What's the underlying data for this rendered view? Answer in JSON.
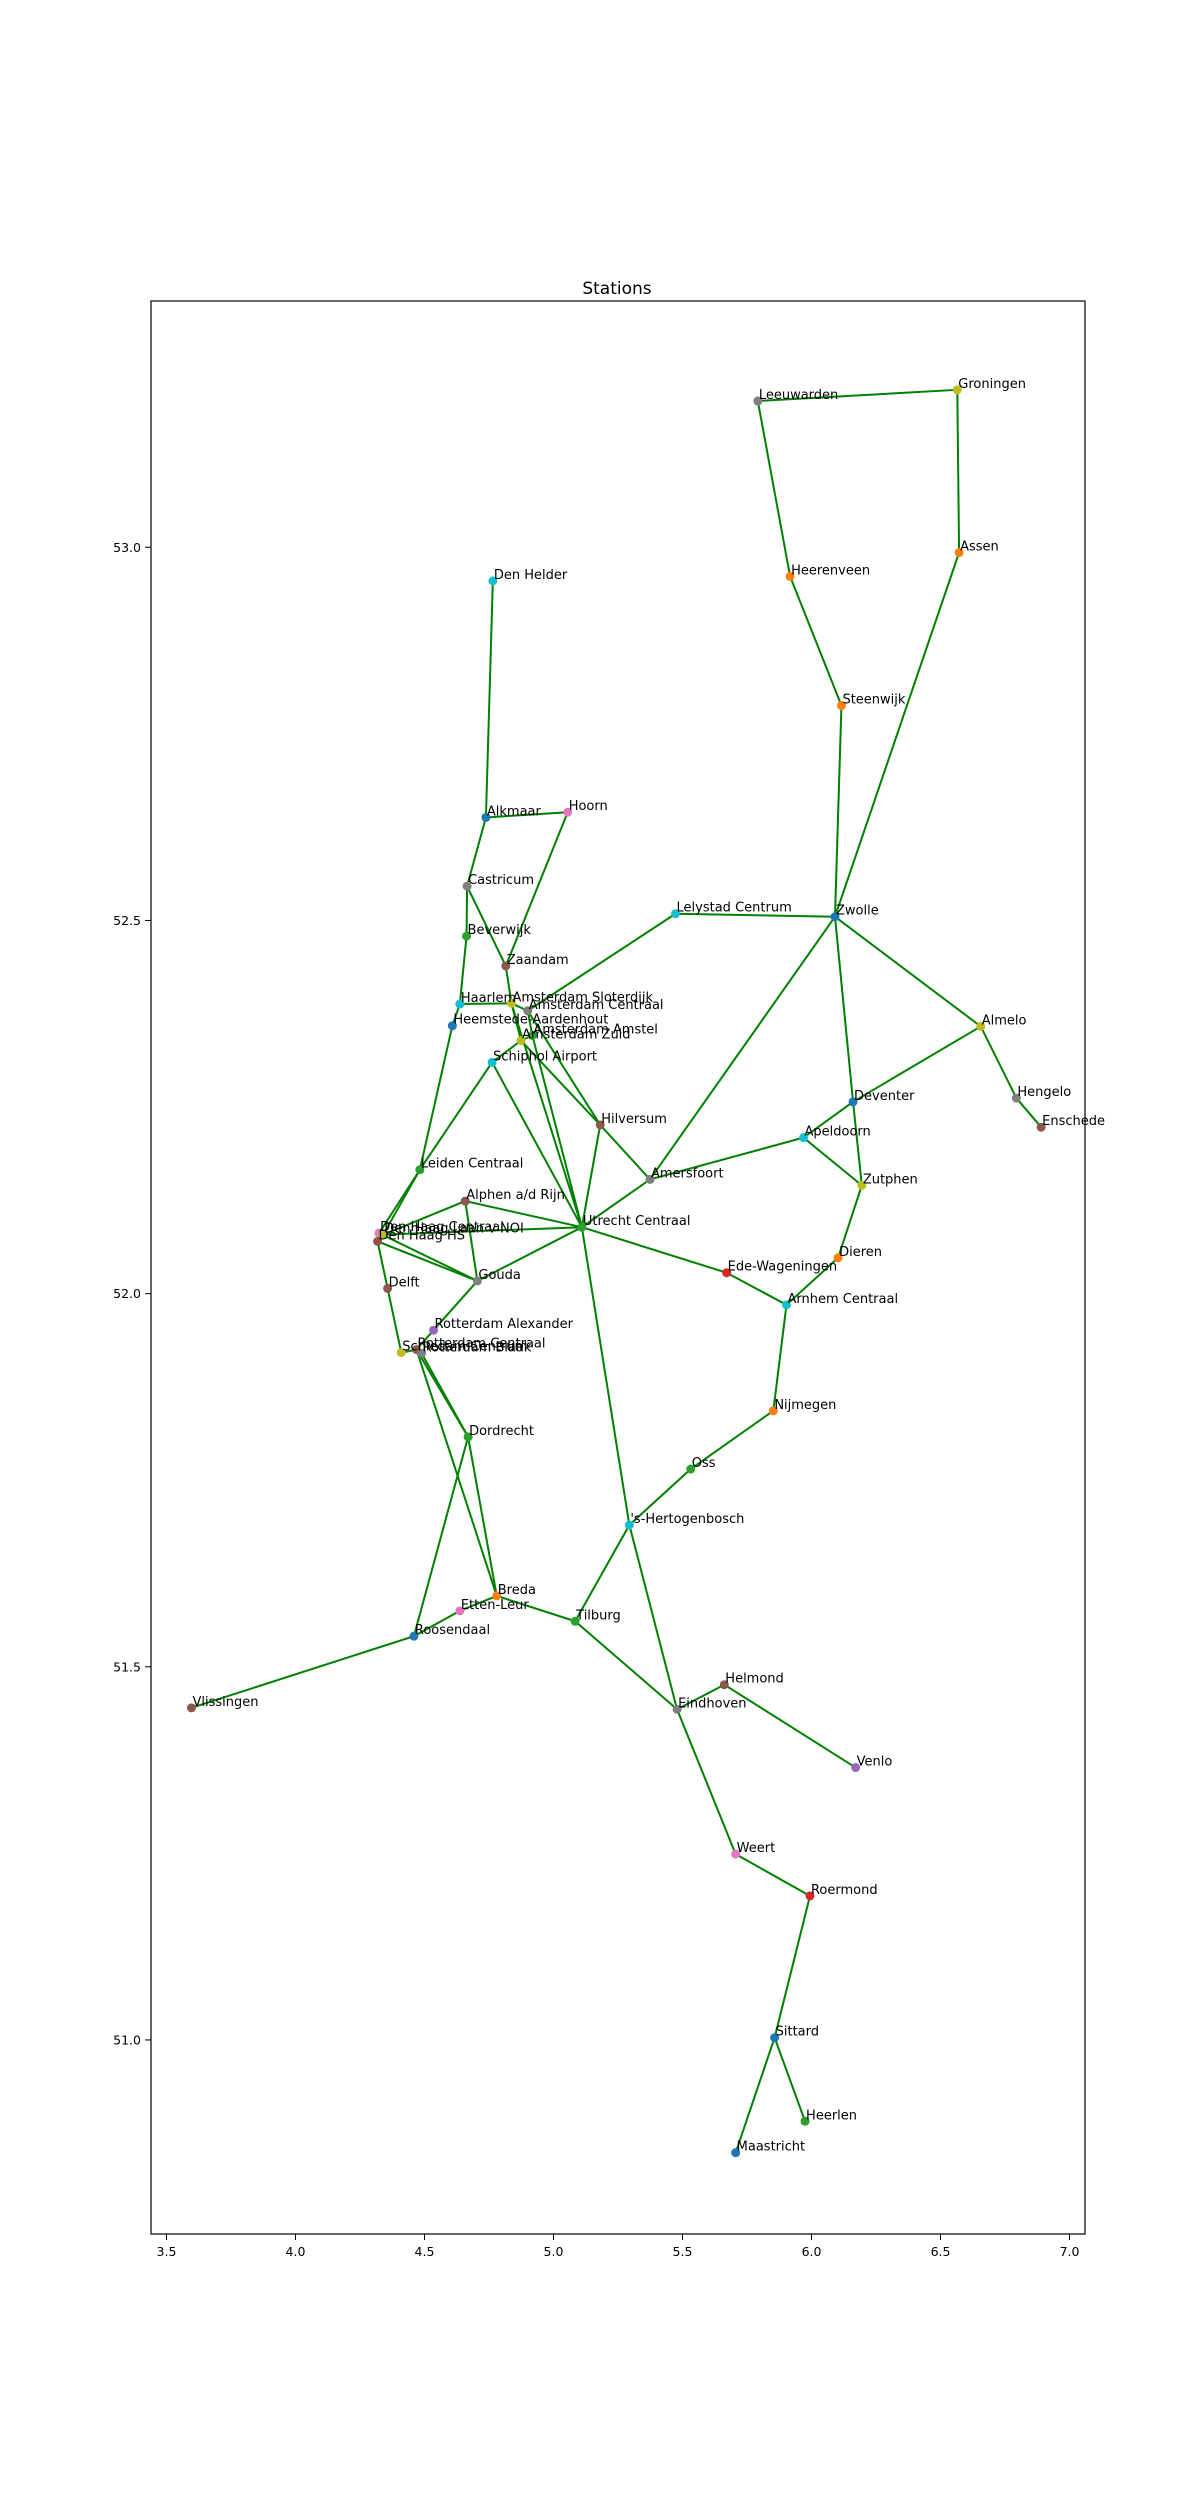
{
  "chart_data": {
    "type": "scatter",
    "title": "Stations",
    "xlabel": "",
    "ylabel": "",
    "xlim": [
      3.44,
      7.06
    ],
    "ylim": [
      50.74,
      53.33
    ],
    "xticks": [
      3.5,
      4.0,
      4.5,
      5.0,
      5.5,
      6.0,
      6.5,
      7.0
    ],
    "xtick_labels": [
      "3.5",
      "4.0",
      "4.5",
      "5.0",
      "5.5",
      "6.0",
      "6.5",
      "7.0"
    ],
    "yticks": [
      51.0,
      51.5,
      52.0,
      52.5,
      53.0
    ],
    "ytick_labels": [
      "51.0",
      "51.5",
      "52.0",
      "52.5",
      "53.0"
    ],
    "grid": false,
    "edge_color": "#008000",
    "points": [
      {
        "name": "Groningen",
        "x": 6.565,
        "y": 53.211,
        "color": "#bcbd22"
      },
      {
        "name": "Leeuwarden",
        "x": 5.792,
        "y": 53.196,
        "color": "#7f7f7f"
      },
      {
        "name": "Assen",
        "x": 6.572,
        "y": 52.993,
        "color": "#ff7f0e"
      },
      {
        "name": "Heerenveen",
        "x": 5.917,
        "y": 52.961,
        "color": "#ff7f0e"
      },
      {
        "name": "Den Helder",
        "x": 4.765,
        "y": 52.955,
        "color": "#17becf"
      },
      {
        "name": "Steenwijk",
        "x": 6.116,
        "y": 52.788,
        "color": "#ff7f0e"
      },
      {
        "name": "Hoorn",
        "x": 5.055,
        "y": 52.645,
        "color": "#e377c2"
      },
      {
        "name": "Alkmaar",
        "x": 4.738,
        "y": 52.638,
        "color": "#1f77b4"
      },
      {
        "name": "Castricum",
        "x": 4.665,
        "y": 52.546,
        "color": "#7f7f7f"
      },
      {
        "name": "Lelystad Centrum",
        "x": 5.473,
        "y": 52.509,
        "color": "#17becf"
      },
      {
        "name": "Zwolle",
        "x": 6.091,
        "y": 52.505,
        "color": "#1f77b4"
      },
      {
        "name": "Beverwijk",
        "x": 4.663,
        "y": 52.479,
        "color": "#2ca02c"
      },
      {
        "name": "Zaandam",
        "x": 4.815,
        "y": 52.439,
        "color": "#8c564b"
      },
      {
        "name": "Haarlem",
        "x": 4.637,
        "y": 52.388,
        "color": "#17becf"
      },
      {
        "name": "Amsterdam Sloterdijk",
        "x": 4.837,
        "y": 52.389,
        "color": "#bcbd22"
      },
      {
        "name": "Amsterdam Centraal",
        "x": 4.9,
        "y": 52.379,
        "color": "#7f7f7f"
      },
      {
        "name": "Almelo",
        "x": 6.656,
        "y": 52.358,
        "color": "#bcbd22"
      },
      {
        "name": "Heemstede-Aardenhout",
        "x": 4.608,
        "y": 52.359,
        "color": "#1f77b4"
      },
      {
        "name": "Amsterdam Amstel",
        "x": 4.918,
        "y": 52.346,
        "color": "#2ca02c"
      },
      {
        "name": "Amsterdam Zuid",
        "x": 4.874,
        "y": 52.339,
        "color": "#bcbd22"
      },
      {
        "name": "Schiphol Airport",
        "x": 4.762,
        "y": 52.31,
        "color": "#17becf"
      },
      {
        "name": "Hengelo",
        "x": 6.794,
        "y": 52.262,
        "color": "#7f7f7f"
      },
      {
        "name": "Deventer",
        "x": 6.161,
        "y": 52.257,
        "color": "#1f77b4"
      },
      {
        "name": "Enschede",
        "x": 6.89,
        "y": 52.223,
        "color": "#8c564b"
      },
      {
        "name": "Hilversum",
        "x": 5.181,
        "y": 52.226,
        "color": "#8c564b"
      },
      {
        "name": "Apeldoorn",
        "x": 5.969,
        "y": 52.209,
        "color": "#17becf"
      },
      {
        "name": "Leiden Centraal",
        "x": 4.482,
        "y": 52.166,
        "color": "#2ca02c"
      },
      {
        "name": "Amersfoort",
        "x": 5.374,
        "y": 52.153,
        "color": "#7f7f7f"
      },
      {
        "name": "Zutphen",
        "x": 6.195,
        "y": 52.145,
        "color": "#bcbd22"
      },
      {
        "name": "Alphen a/d Rijn",
        "x": 4.658,
        "y": 52.124,
        "color": "#8c564b"
      },
      {
        "name": "Utrecht Centraal",
        "x": 5.11,
        "y": 52.089,
        "color": "#2ca02c"
      },
      {
        "name": "Den Haag Centraal",
        "x": 4.324,
        "y": 52.081,
        "color": "#e377c2"
      },
      {
        "name": "Den Haag Laan v NOI",
        "x": 4.34,
        "y": 52.079,
        "color": "#bcbd22"
      },
      {
        "name": "Den Haag HS",
        "x": 4.318,
        "y": 52.07,
        "color": "#8c564b"
      },
      {
        "name": "Dieren",
        "x": 6.103,
        "y": 52.048,
        "color": "#ff7f0e"
      },
      {
        "name": "Ede-Wageningen",
        "x": 5.671,
        "y": 52.028,
        "color": "#d62728"
      },
      {
        "name": "Gouda",
        "x": 4.705,
        "y": 52.017,
        "color": "#7f7f7f"
      },
      {
        "name": "Delft",
        "x": 4.357,
        "y": 52.007,
        "color": "#8c564b"
      },
      {
        "name": "Arnhem Centraal",
        "x": 5.903,
        "y": 51.985,
        "color": "#17becf"
      },
      {
        "name": "Rotterdam Alexander",
        "x": 4.535,
        "y": 51.951,
        "color": "#9467bd"
      },
      {
        "name": "Rotterdam Centraal",
        "x": 4.469,
        "y": 51.925,
        "color": "#8c564b"
      },
      {
        "name": "Schiedam Centrum",
        "x": 4.41,
        "y": 51.921,
        "color": "#bcbd22"
      },
      {
        "name": "Rotterdam Blaak",
        "x": 4.489,
        "y": 51.92,
        "color": "#7f7f7f"
      },
      {
        "name": "Nijmegen",
        "x": 5.852,
        "y": 51.843,
        "color": "#ff7f0e"
      },
      {
        "name": "Dordrecht",
        "x": 4.669,
        "y": 51.808,
        "color": "#2ca02c"
      },
      {
        "name": "Oss",
        "x": 5.532,
        "y": 51.765,
        "color": "#2ca02c"
      },
      {
        "name": "'s-Hertogenbosch",
        "x": 5.294,
        "y": 51.69,
        "color": "#17becf"
      },
      {
        "name": "Breda",
        "x": 4.78,
        "y": 51.595,
        "color": "#ff7f0e"
      },
      {
        "name": "Etten-Leur",
        "x": 4.637,
        "y": 51.575,
        "color": "#e377c2"
      },
      {
        "name": "Tilburg",
        "x": 5.084,
        "y": 51.561,
        "color": "#2ca02c"
      },
      {
        "name": "Roosendaal",
        "x": 4.459,
        "y": 51.541,
        "color": "#1f77b4"
      },
      {
        "name": "Helmond",
        "x": 5.662,
        "y": 51.476,
        "color": "#8c564b"
      },
      {
        "name": "Vlissingen",
        "x": 3.597,
        "y": 51.445,
        "color": "#8c564b"
      },
      {
        "name": "Eindhoven",
        "x": 5.479,
        "y": 51.443,
        "color": "#7f7f7f"
      },
      {
        "name": "Venlo",
        "x": 6.171,
        "y": 51.365,
        "color": "#9467bd"
      },
      {
        "name": "Weert",
        "x": 5.706,
        "y": 51.249,
        "color": "#e377c2"
      },
      {
        "name": "Roermond",
        "x": 5.994,
        "y": 51.193,
        "color": "#d62728"
      },
      {
        "name": "Sittard",
        "x": 5.857,
        "y": 51.003,
        "color": "#1f77b4"
      },
      {
        "name": "Heerlen",
        "x": 5.975,
        "y": 50.891,
        "color": "#2ca02c"
      },
      {
        "name": "Maastricht",
        "x": 5.706,
        "y": 50.849,
        "color": "#1f77b4"
      }
    ],
    "edges": [
      [
        "Groningen",
        "Leeuwarden"
      ],
      [
        "Groningen",
        "Assen"
      ],
      [
        "Assen",
        "Zwolle"
      ],
      [
        "Leeuwarden",
        "Heerenveen"
      ],
      [
        "Heerenveen",
        "Steenwijk"
      ],
      [
        "Steenwijk",
        "Zwolle"
      ],
      [
        "Zwolle",
        "Lelystad Centrum"
      ],
      [
        "Zwolle",
        "Almelo"
      ],
      [
        "Zwolle",
        "Deventer"
      ],
      [
        "Zwolle",
        "Amersfoort"
      ],
      [
        "Almelo",
        "Hengelo"
      ],
      [
        "Hengelo",
        "Enschede"
      ],
      [
        "Almelo",
        "Deventer"
      ],
      [
        "Deventer",
        "Apeldoorn"
      ],
      [
        "Deventer",
        "Zutphen"
      ],
      [
        "Apeldoorn",
        "Amersfoort"
      ],
      [
        "Apeldoorn",
        "Zutphen"
      ],
      [
        "Zutphen",
        "Dieren"
      ],
      [
        "Dieren",
        "Arnhem Centraal"
      ],
      [
        "Lelystad Centrum",
        "Amsterdam Centraal"
      ],
      [
        "Den Helder",
        "Alkmaar"
      ],
      [
        "Alkmaar",
        "Hoorn"
      ],
      [
        "Alkmaar",
        "Castricum"
      ],
      [
        "Hoorn",
        "Zaandam"
      ],
      [
        "Castricum",
        "Beverwijk"
      ],
      [
        "Castricum",
        "Zaandam"
      ],
      [
        "Beverwijk",
        "Haarlem"
      ],
      [
        "Zaandam",
        "Amsterdam Sloterdijk"
      ],
      [
        "Haarlem",
        "Amsterdam Sloterdijk"
      ],
      [
        "Haarlem",
        "Heemstede-Aardenhout"
      ],
      [
        "Amsterdam Sloterdijk",
        "Amsterdam Centraal"
      ],
      [
        "Amsterdam Sloterdijk",
        "Amsterdam Zuid"
      ],
      [
        "Amsterdam Sloterdijk",
        "Utrecht Centraal"
      ],
      [
        "Amsterdam Centraal",
        "Amsterdam Amstel"
      ],
      [
        "Amsterdam Centraal",
        "Hilversum"
      ],
      [
        "Amsterdam Zuid",
        "Amsterdam Amstel"
      ],
      [
        "Amsterdam Zuid",
        "Schiphol Airport"
      ],
      [
        "Amsterdam Amstel",
        "Utrecht Centraal"
      ],
      [
        "Amsterdam Zuid",
        "Hilversum"
      ],
      [
        "Heemstede-Aardenhout",
        "Leiden Centraal"
      ],
      [
        "Schiphol Airport",
        "Leiden Centraal"
      ],
      [
        "Schiphol Airport",
        "Utrecht Centraal"
      ],
      [
        "Hilversum",
        "Utrecht Centraal"
      ],
      [
        "Hilversum",
        "Amersfoort"
      ],
      [
        "Amersfoort",
        "Utrecht Centraal"
      ],
      [
        "Leiden Centraal",
        "Den Haag Centraal"
      ],
      [
        "Leiden Centraal",
        "Den Haag Laan v NOI"
      ],
      [
        "Alphen a/d Rijn",
        "Utrecht Centraal"
      ],
      [
        "Alphen a/d Rijn",
        "Gouda"
      ],
      [
        "Alphen a/d Rijn",
        "Den Haag Laan v NOI"
      ],
      [
        "Den Haag Centraal",
        "Gouda"
      ],
      [
        "Den Haag Laan v NOI",
        "Utrecht Centraal"
      ],
      [
        "Den Haag HS",
        "Delft"
      ],
      [
        "Den Haag HS",
        "Gouda"
      ],
      [
        "Den Haag Centraal",
        "Den Haag HS"
      ],
      [
        "Delft",
        "Schiedam Centrum"
      ],
      [
        "Gouda",
        "Utrecht Centraal"
      ],
      [
        "Gouda",
        "Rotterdam Alexander"
      ],
      [
        "Rotterdam Alexander",
        "Rotterdam Centraal"
      ],
      [
        "Schiedam Centrum",
        "Rotterdam Centraal"
      ],
      [
        "Rotterdam Centraal",
        "Rotterdam Blaak"
      ],
      [
        "Rotterdam Centraal",
        "Dordrecht"
      ],
      [
        "Rotterdam Blaak",
        "Dordrecht"
      ],
      [
        "Rotterdam Centraal",
        "Breda"
      ],
      [
        "Dordrecht",
        "Breda"
      ],
      [
        "Dordrecht",
        "Roosendaal"
      ],
      [
        "Breda",
        "Etten-Leur"
      ],
      [
        "Etten-Leur",
        "Roosendaal"
      ],
      [
        "Breda",
        "Tilburg"
      ],
      [
        "Roosendaal",
        "Vlissingen"
      ],
      [
        "Tilburg",
        "'s-Hertogenbosch"
      ],
      [
        "Tilburg",
        "Eindhoven"
      ],
      [
        "Utrecht Centraal",
        "Ede-Wageningen"
      ],
      [
        "Ede-Wageningen",
        "Arnhem Centraal"
      ],
      [
        "Utrecht Centraal",
        "'s-Hertogenbosch"
      ],
      [
        "Arnhem Centraal",
        "Nijmegen"
      ],
      [
        "Nijmegen",
        "Oss"
      ],
      [
        "Oss",
        "'s-Hertogenbosch"
      ],
      [
        "'s-Hertogenbosch",
        "Eindhoven"
      ],
      [
        "Eindhoven",
        "Helmond"
      ],
      [
        "Helmond",
        "Venlo"
      ],
      [
        "Eindhoven",
        "Weert"
      ],
      [
        "Weert",
        "Roermond"
      ],
      [
        "Roermond",
        "Sittard"
      ],
      [
        "Sittard",
        "Heerlen"
      ],
      [
        "Sittard",
        "Maastricht"
      ]
    ]
  }
}
